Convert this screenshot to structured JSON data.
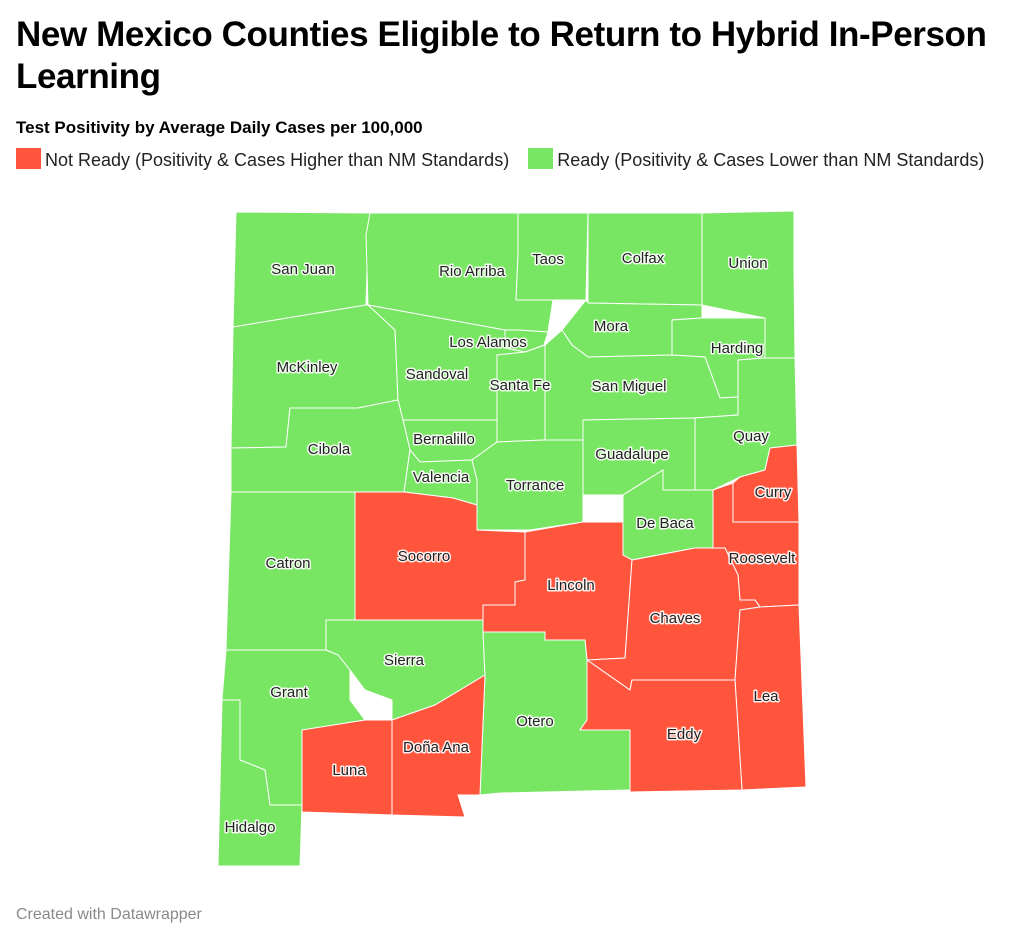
{
  "title": "New Mexico Counties Eligible to Return to Hybrid In-Person Learning",
  "subtitle": "Test Positivity by Average Daily Cases per 100,000",
  "legend": [
    {
      "label": "Not Ready (Positivity & Cases Higher than NM Standards)",
      "color": "#ff553d"
    },
    {
      "label": "Ready (Positivity & Cases Lower than NM Standards)",
      "color": "#78e662"
    }
  ],
  "colors": {
    "not_ready": "#ff553d",
    "ready": "#78e662"
  },
  "counties": [
    {
      "name": "San Juan",
      "status": "ready"
    },
    {
      "name": "Rio Arriba",
      "status": "ready"
    },
    {
      "name": "Taos",
      "status": "ready"
    },
    {
      "name": "Colfax",
      "status": "ready"
    },
    {
      "name": "Union",
      "status": "ready"
    },
    {
      "name": "Mora",
      "status": "ready"
    },
    {
      "name": "Los Alamos",
      "status": "ready"
    },
    {
      "name": "Harding",
      "status": "ready"
    },
    {
      "name": "McKinley",
      "status": "ready"
    },
    {
      "name": "Sandoval",
      "status": "ready"
    },
    {
      "name": "Santa Fe",
      "status": "ready"
    },
    {
      "name": "San Miguel",
      "status": "ready"
    },
    {
      "name": "Bernalillo",
      "status": "ready"
    },
    {
      "name": "Cibola",
      "status": "ready"
    },
    {
      "name": "Quay",
      "status": "ready"
    },
    {
      "name": "Guadalupe",
      "status": "ready"
    },
    {
      "name": "Valencia",
      "status": "ready"
    },
    {
      "name": "Torrance",
      "status": "ready"
    },
    {
      "name": "Curry",
      "status": "not_ready"
    },
    {
      "name": "De Baca",
      "status": "ready"
    },
    {
      "name": "Socorro",
      "status": "not_ready"
    },
    {
      "name": "Catron",
      "status": "ready"
    },
    {
      "name": "Lincoln",
      "status": "not_ready"
    },
    {
      "name": "Roosevelt",
      "status": "not_ready"
    },
    {
      "name": "Chaves",
      "status": "not_ready"
    },
    {
      "name": "Sierra",
      "status": "ready"
    },
    {
      "name": "Grant",
      "status": "ready"
    },
    {
      "name": "Lea",
      "status": "not_ready"
    },
    {
      "name": "Otero",
      "status": "ready"
    },
    {
      "name": "Doña Ana",
      "status": "not_ready"
    },
    {
      "name": "Eddy",
      "status": "not_ready"
    },
    {
      "name": "Luna",
      "status": "not_ready"
    },
    {
      "name": "Hidalgo",
      "status": "ready"
    }
  ],
  "credit": "Created with Datawrapper"
}
